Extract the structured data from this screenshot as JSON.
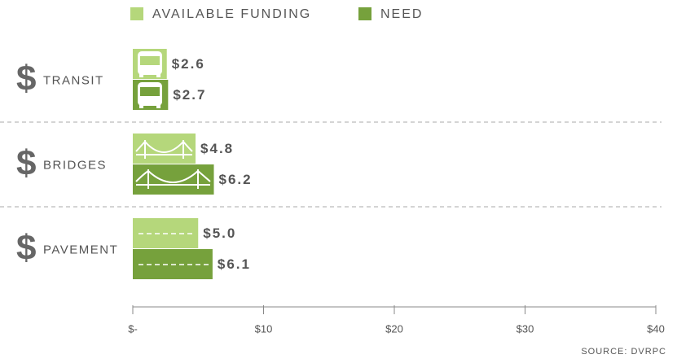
{
  "chart_data": {
    "type": "hbar",
    "category_symbol": "$",
    "categories": [
      "TRANSIT",
      "BRIDGES",
      "PAVEMENT"
    ],
    "series": [
      {
        "name": "AVAILABLE FUNDING",
        "color": "#b5d77b",
        "values": [
          2.6,
          4.8,
          5.0
        ],
        "value_labels": [
          "$2.6",
          "$4.8",
          "$5.0"
        ]
      },
      {
        "name": "NEED",
        "color": "#76a13c",
        "values": [
          2.7,
          6.2,
          6.1
        ],
        "value_labels": [
          "$2.7",
          "$6.2",
          "$6.1"
        ]
      }
    ],
    "xlim": [
      0,
      40
    ],
    "xticks": [
      {
        "value": 0,
        "label": "$-"
      },
      {
        "value": 10,
        "label": "$10"
      },
      {
        "value": 20,
        "label": "$20"
      },
      {
        "value": 30,
        "label": "$30"
      },
      {
        "value": 40,
        "label": "$40"
      }
    ],
    "source": "SOURCE: DVRPC"
  }
}
